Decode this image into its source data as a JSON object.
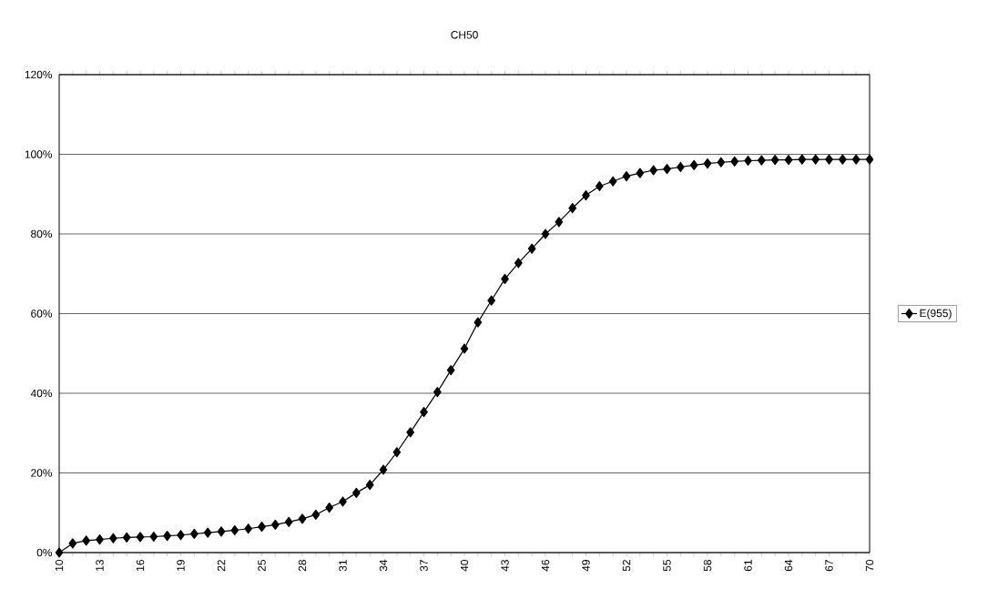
{
  "chart_data": {
    "type": "line",
    "title": "CH50",
    "categories": [
      "10",
      null,
      null,
      "13",
      null,
      null,
      "16",
      null,
      null,
      "19",
      null,
      null,
      "22",
      null,
      null,
      "25",
      null,
      null,
      "28",
      null,
      null,
      "31",
      null,
      null,
      "34",
      null,
      null,
      "37",
      null,
      null,
      "40",
      null,
      null,
      "43",
      null,
      null,
      "46",
      null,
      null,
      "49",
      null,
      null,
      "52",
      null,
      null,
      "55",
      null,
      null,
      "58",
      null,
      null,
      "61",
      null,
      null,
      "64",
      null,
      null,
      "67",
      null,
      null,
      "70"
    ],
    "series": [
      {
        "name": "E(955)",
        "color": "#000000",
        "values": [
          0,
          2.3,
          3.0,
          3.3,
          3.6,
          3.8,
          3.9,
          4.0,
          4.2,
          4.4,
          4.7,
          5.0,
          5.3,
          5.6,
          6.0,
          6.5,
          7.0,
          7.7,
          8.5,
          9.5,
          11.3,
          12.8,
          15.0,
          17.0,
          20.8,
          25.2,
          30.2,
          35.3,
          40.3,
          45.8,
          51.2,
          57.8,
          63.3,
          68.7,
          72.7,
          76.3,
          80.0,
          83.0,
          86.5,
          89.7,
          92.0,
          93.2,
          94.5,
          95.3,
          96.0,
          96.3,
          96.8,
          97.3,
          97.7,
          98.0,
          98.2,
          98.4,
          98.5,
          98.6,
          98.6,
          98.7,
          98.7,
          98.7,
          98.7,
          98.7,
          98.7
        ]
      }
    ],
    "ylim": [
      0,
      120
    ],
    "yticks": [
      {
        "value": 0,
        "label": "0%"
      },
      {
        "value": 20,
        "label": "20%"
      },
      {
        "value": 40,
        "label": "40%"
      },
      {
        "value": 60,
        "label": "60%"
      },
      {
        "value": 80,
        "label": "80%"
      },
      {
        "value": 100,
        "label": "100%"
      },
      {
        "value": 120,
        "label": "120%"
      }
    ],
    "grid": "y",
    "legend": "right",
    "marker": "diamond",
    "line_style": "solid"
  }
}
